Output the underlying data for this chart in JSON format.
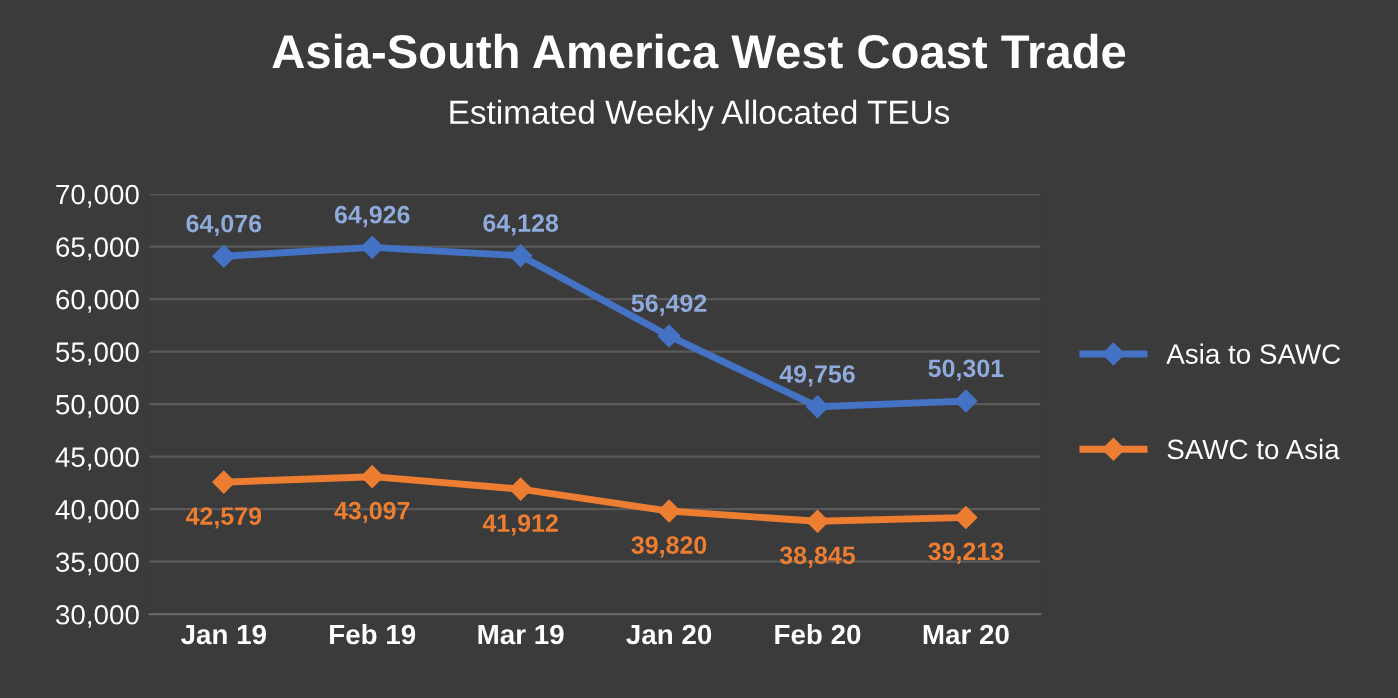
{
  "chart_data": {
    "type": "line",
    "title": "Asia-South America West Coast Trade",
    "subtitle": "Estimated Weekly Allocated TEUs",
    "categories": [
      "Jan 19",
      "Feb 19",
      "Mar 19",
      "Jan 20",
      "Feb 20",
      "Mar 20"
    ],
    "series": [
      {
        "name": "Asia to SAWC",
        "color": "#4472c4",
        "values": [
          64076,
          64926,
          64128,
          56492,
          49756,
          50301
        ],
        "value_labels": [
          "64,076",
          "64,926",
          "64,128",
          "56,492",
          "49,756",
          "50,301"
        ]
      },
      {
        "name": "SAWC to Asia",
        "color": "#ed7d31",
        "values": [
          42579,
          43097,
          41912,
          39820,
          38845,
          39213
        ],
        "value_labels": [
          "42,579",
          "43,097",
          "41,912",
          "39,820",
          "38,845",
          "39,213"
        ]
      }
    ],
    "ylim": [
      30000,
      70000
    ],
    "yticks": [
      {
        "value": 30000,
        "label": "30,000"
      },
      {
        "value": 35000,
        "label": "35,000"
      },
      {
        "value": 40000,
        "label": "40,000"
      },
      {
        "value": 45000,
        "label": "45,000"
      },
      {
        "value": 50000,
        "label": "50,000"
      },
      {
        "value": 55000,
        "label": "55,000"
      },
      {
        "value": 60000,
        "label": "60,000"
      },
      {
        "value": 65000,
        "label": "65,000"
      },
      {
        "value": 70000,
        "label": "70,000"
      }
    ],
    "grid": "y",
    "legend": "right",
    "marker": "diamond",
    "line_style": "solid"
  }
}
